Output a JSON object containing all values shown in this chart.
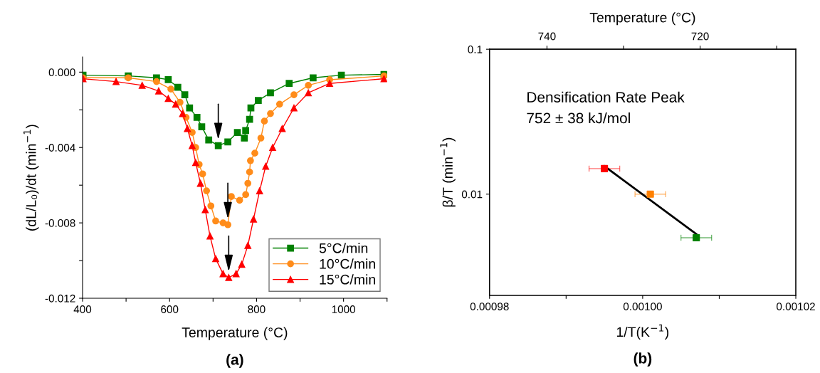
{
  "chart_data": [
    {
      "type": "line",
      "title": "(a)",
      "xlabel": "Temperature (°C)",
      "ylabel": "(dL/L₀)/dt (min$^{−1}$)",
      "xlim": [
        400,
        1100
      ],
      "xticks": [
        400,
        {
          "value": 500,
          "label": null
        },
        600,
        {
          "value": 700,
          "label": null
        },
        800,
        {
          "value": 900,
          "label": null
        },
        1000,
        {
          "value": 1100,
          "label": null
        }
      ],
      "ylim": [
        -0.012,
        0.0008
      ],
      "yticks": [
        {
          "value": -0.012,
          "label": "-0.012"
        },
        {
          "value": -0.01,
          "label": null
        },
        {
          "value": -0.008,
          "label": "-0.008"
        },
        {
          "value": -0.006,
          "label": null
        },
        {
          "value": -0.004,
          "label": "-0.004"
        },
        {
          "value": -0.002,
          "label": null
        },
        {
          "value": 0.0,
          "label": "0.000"
        }
      ],
      "legend": "bottom right",
      "series": [
        {
          "name": "5°C/min",
          "color": "#008000",
          "marker": "square",
          "x": [
            401,
            505,
            570,
            597,
            619,
            635,
            646,
            663,
            674,
            690,
            712,
            734,
            756,
            772,
            775,
            784,
            787,
            804,
            832,
            875,
            930,
            995,
            1093
          ],
          "values": [
            -0.00016,
            -0.0002,
            -0.0003,
            -0.0004,
            -0.0008,
            -0.0012,
            -0.0019,
            -0.0024,
            -0.0029,
            -0.0036,
            -0.0039,
            -0.0037,
            -0.0032,
            -0.0035,
            -0.0031,
            -0.0025,
            -0.0019,
            -0.0015,
            -0.0011,
            -0.0006,
            -0.0003,
            -0.00016,
            -0.00012
          ]
        },
        {
          "name": "10°C/min",
          "color": "#ff8c1a",
          "marker": "circle",
          "x": [
            401,
            505,
            570,
            603,
            624,
            638,
            652,
            660,
            668,
            676,
            685,
            695,
            706,
            723,
            734,
            742,
            761,
            775,
            780,
            784,
            786,
            796,
            810,
            818,
            832,
            853,
            886,
            919,
            968,
            1093
          ],
          "values": [
            -0.0003,
            -0.0003,
            -0.0005,
            -0.0009,
            -0.0016,
            -0.0024,
            -0.0032,
            -0.004,
            -0.0049,
            -0.0054,
            -0.0063,
            -0.0071,
            -0.0079,
            -0.008,
            -0.0081,
            -0.0066,
            -0.0068,
            -0.0065,
            -0.0059,
            -0.0053,
            -0.0047,
            -0.0043,
            -0.0035,
            -0.0026,
            -0.0022,
            -0.0017,
            -0.0012,
            -0.0007,
            -0.0004,
            -0.0002
          ]
        },
        {
          "name": "15°C/min",
          "color": "#ff0000",
          "marker": "triangle",
          "x": [
            401,
            477,
            537,
            575,
            597,
            614,
            630,
            641,
            652,
            660,
            671,
            682,
            693,
            706,
            723,
            736,
            753,
            766,
            780,
            793,
            807,
            821,
            837,
            859,
            886,
            919,
            968,
            1093
          ],
          "values": [
            -0.00035,
            -0.0005,
            -0.0007,
            -0.001,
            -0.0014,
            -0.0017,
            -0.0022,
            -0.003,
            -0.0039,
            -0.0048,
            -0.0059,
            -0.0073,
            -0.0087,
            -0.0099,
            -0.0107,
            -0.0109,
            -0.0107,
            -0.0102,
            -0.0092,
            -0.0078,
            -0.0063,
            -0.005,
            -0.004,
            -0.003,
            -0.0019,
            -0.0011,
            -0.0006,
            -0.00035
          ]
        }
      ]
    },
    {
      "type": "scatter",
      "title": "(b)",
      "xlabel": "1/T(K$^{−1}$)",
      "ylabel": "β/T (min$^{−1}$)",
      "x2label": "Temperature (°C)",
      "log": "y",
      "xlim": [
        0.00098,
        0.00102
      ],
      "xticks": [
        {
          "value": 0.00098,
          "label": "0.00098"
        },
        {
          "value": 0.00099,
          "label": null
        },
        {
          "value": 0.001,
          "label": "0.00100"
        },
        {
          "value": 0.00101,
          "label": null
        },
        {
          "value": 0.00102,
          "label": "0.00102"
        }
      ],
      "x2lim": [
        747.5,
        707.5
      ],
      "x2ticks": [
        740,
        {
          "value": 730,
          "label": null
        },
        720,
        {
          "value": 710,
          "label": null
        }
      ],
      "ylim": [
        0.002,
        0.1
      ],
      "yticks": [
        {
          "value": 0.01,
          "label": "0.01"
        },
        {
          "value": 0.1,
          "label": "0.1"
        }
      ],
      "marker": "square",
      "annotations": [
        "Densification Rate Peak",
        "752 ± 38 kJ/mol"
      ],
      "series": [
        {
          "color": "#ff0000",
          "x": [
            0.000995
          ],
          "values": [
            0.015
          ],
          "xerrors": [
            2e-06
          ]
        },
        {
          "color": "#ff8000",
          "x": [
            0.001001
          ],
          "values": [
            0.01
          ],
          "xerrors": [
            2e-06
          ]
        },
        {
          "color": "#008000",
          "x": [
            0.001007
          ],
          "values": [
            0.005
          ],
          "xerrors": [
            2e-06
          ]
        },
        {
          "type": "line",
          "color": "#000000",
          "marker": "none",
          "x": [
            0.000995,
            0.001007
          ],
          "values": [
            0.0156,
            0.0053
          ]
        }
      ]
    }
  ]
}
